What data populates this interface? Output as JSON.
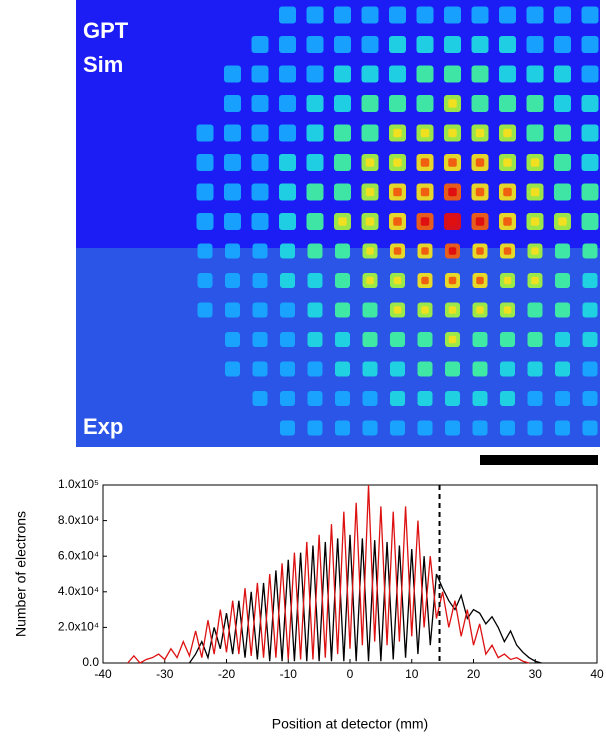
{
  "image": {
    "labels": [
      "GPT",
      "Sim",
      "Exp"
    ]
  },
  "chart_data": {
    "type": "line",
    "x_label": "Position at detector (mm)",
    "y_label": "Number of electrons",
    "xlim": [
      -40,
      40
    ],
    "xticks": [
      -40,
      -30,
      -20,
      -10,
      0,
      10,
      20,
      30,
      40
    ],
    "ylim": [
      0,
      100000
    ],
    "yticks": [
      {
        "value": 0,
        "label": "0.0"
      },
      {
        "value": 20000,
        "label": "2.0x10⁴"
      },
      {
        "value": 40000,
        "label": "4.0x10⁴"
      },
      {
        "value": 60000,
        "label": "6.0x10⁴"
      },
      {
        "value": 80000,
        "label": "8.0x10⁴"
      },
      {
        "value": 100000,
        "label": "1.0x10⁵"
      }
    ],
    "reference_line": 14.5,
    "x": [
      -36,
      -35,
      -34,
      -33,
      -32,
      -31,
      -30,
      -29,
      -28,
      -27,
      -26,
      -25,
      -24,
      -23,
      -22,
      -21,
      -20,
      -19,
      -18,
      -17,
      -16,
      -15,
      -14,
      -13,
      -12,
      -11,
      -10,
      -9,
      -8,
      -7,
      -6,
      -5,
      -4,
      -3,
      -2,
      -1,
      0,
      1,
      2,
      3,
      4,
      5,
      6,
      7,
      8,
      9,
      10,
      11,
      12,
      13,
      14,
      15,
      16,
      17,
      18,
      19,
      20,
      21,
      22,
      23,
      24,
      25,
      26,
      27,
      28,
      29,
      30,
      31
    ],
    "series": [
      {
        "color": "#000000",
        "values": [
          null,
          null,
          null,
          null,
          null,
          null,
          null,
          null,
          null,
          null,
          0,
          5000,
          12000,
          3000,
          20000,
          8000,
          28000,
          5000,
          35000,
          3000,
          40000,
          2000,
          45000,
          1000,
          52000,
          1000,
          58000,
          1000,
          62000,
          1000,
          66000,
          1000,
          68000,
          1000,
          70000,
          1000,
          72000,
          1000,
          70000,
          1000,
          69000,
          1000,
          68000,
          2000,
          66000,
          3000,
          64000,
          5000,
          60000,
          10000,
          50000,
          42000,
          35000,
          30000,
          38000,
          25000,
          30000,
          28000,
          22000,
          26000,
          20000,
          12000,
          18000,
          10000,
          6000,
          3000,
          1000,
          0
        ]
      },
      {
        "color": "#dd1111",
        "values": [
          0,
          4000,
          0,
          2000,
          3000,
          5000,
          2000,
          8000,
          3000,
          12000,
          4000,
          18000,
          3000,
          24000,
          5000,
          30000,
          6000,
          35000,
          5000,
          42000,
          4000,
          45000,
          3000,
          50000,
          3000,
          56000,
          2000,
          62000,
          2000,
          68000,
          2000,
          72000,
          3000,
          78000,
          5000,
          85000,
          8000,
          90000,
          10000,
          100000,
          12000,
          88000,
          10000,
          85000,
          12000,
          88000,
          15000,
          80000,
          20000,
          60000,
          25000,
          40000,
          20000,
          35000,
          15000,
          30000,
          10000,
          22000,
          5000,
          10000,
          3000,
          5000,
          2000,
          3000,
          1000,
          0,
          null,
          null
        ]
      }
    ]
  }
}
